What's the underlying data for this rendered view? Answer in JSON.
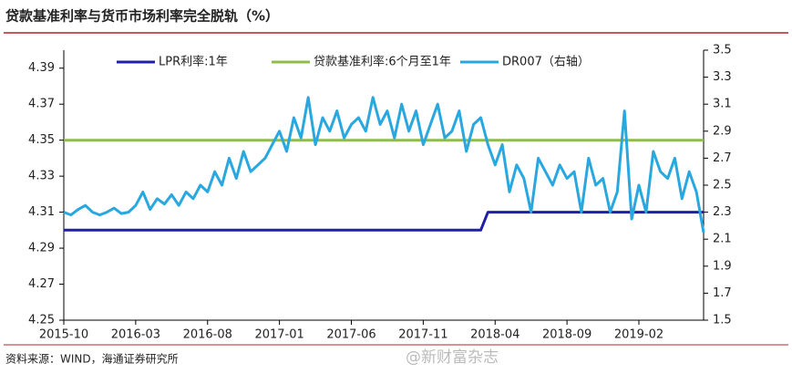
{
  "chart_data": {
    "type": "line",
    "title": "贷款基准利率与货币市场利率完全脱轨（%）",
    "source": "资料来源：WIND，海通证券研究所",
    "watermark": "@新财富杂志",
    "categories": [
      "2015-10",
      null,
      null,
      null,
      null,
      null,
      null,
      null,
      null,
      null,
      "2016-03",
      null,
      null,
      null,
      null,
      null,
      null,
      null,
      null,
      null,
      "2016-08",
      null,
      null,
      null,
      null,
      null,
      null,
      null,
      null,
      null,
      "2017-01",
      null,
      null,
      null,
      null,
      null,
      null,
      null,
      null,
      null,
      "2017-06",
      null,
      null,
      null,
      null,
      null,
      null,
      null,
      null,
      null,
      "2017-11",
      null,
      null,
      null,
      null,
      null,
      null,
      null,
      null,
      null,
      "2018-04",
      null,
      null,
      null,
      null,
      null,
      null,
      null,
      null,
      null,
      "2018-09",
      null,
      null,
      null,
      null,
      null,
      null,
      null,
      null,
      null,
      "2019-02",
      null,
      null,
      null,
      null,
      null,
      null,
      null,
      null,
      null
    ],
    "series": [
      {
        "name": "LPR利率:1年",
        "color": "#1f1fa8",
        "width": 3,
        "values": [
          4.3,
          4.3,
          4.3,
          4.3,
          4.3,
          4.3,
          4.3,
          4.3,
          4.3,
          4.3,
          4.3,
          4.3,
          4.3,
          4.3,
          4.3,
          4.3,
          4.3,
          4.3,
          4.3,
          4.3,
          4.3,
          4.3,
          4.3,
          4.3,
          4.3,
          4.3,
          4.3,
          4.3,
          4.3,
          4.3,
          4.3,
          4.3,
          4.3,
          4.3,
          4.3,
          4.3,
          4.3,
          4.3,
          4.3,
          4.3,
          4.3,
          4.3,
          4.3,
          4.3,
          4.3,
          4.3,
          4.3,
          4.3,
          4.3,
          4.3,
          4.3,
          4.3,
          4.3,
          4.3,
          4.3,
          4.3,
          4.3,
          4.3,
          4.3,
          4.31,
          4.31,
          4.31,
          4.31,
          4.31,
          4.31,
          4.31,
          4.31,
          4.31,
          4.31,
          4.31,
          4.31,
          4.31,
          4.31,
          4.31,
          4.31,
          4.31,
          4.31,
          4.31,
          4.31,
          4.31,
          4.31,
          4.31,
          4.31,
          4.31,
          4.31,
          4.31,
          4.31,
          4.31,
          4.31,
          4.31
        ]
      },
      {
        "name": "贷款基准利率:6个月至1年",
        "color": "#8fbc4a",
        "width": 3,
        "values": [
          4.35,
          4.35,
          4.35,
          4.35,
          4.35,
          4.35,
          4.35,
          4.35,
          4.35,
          4.35,
          4.35,
          4.35,
          4.35,
          4.35,
          4.35,
          4.35,
          4.35,
          4.35,
          4.35,
          4.35,
          4.35,
          4.35,
          4.35,
          4.35,
          4.35,
          4.35,
          4.35,
          4.35,
          4.35,
          4.35,
          4.35,
          4.35,
          4.35,
          4.35,
          4.35,
          4.35,
          4.35,
          4.35,
          4.35,
          4.35,
          4.35,
          4.35,
          4.35,
          4.35,
          4.35,
          4.35,
          4.35,
          4.35,
          4.35,
          4.35,
          4.35,
          4.35,
          4.35,
          4.35,
          4.35,
          4.35,
          4.35,
          4.35,
          4.35,
          4.35,
          4.35,
          4.35,
          4.35,
          4.35,
          4.35,
          4.35,
          4.35,
          4.35,
          4.35,
          4.35,
          4.35,
          4.35,
          4.35,
          4.35,
          4.35,
          4.35,
          4.35,
          4.35,
          4.35,
          4.35,
          4.35,
          4.35,
          4.35,
          4.35,
          4.35,
          4.35,
          4.35,
          4.35,
          4.35,
          4.35
        ]
      },
      {
        "name": "DR007（右轴）",
        "color": "#29a8e0",
        "width": 3,
        "axis": "y2",
        "values": [
          2.3,
          2.28,
          2.32,
          2.35,
          2.3,
          2.28,
          2.3,
          2.33,
          2.29,
          2.3,
          2.35,
          2.45,
          2.32,
          2.4,
          2.36,
          2.43,
          2.35,
          2.45,
          2.4,
          2.5,
          2.45,
          2.6,
          2.5,
          2.7,
          2.55,
          2.75,
          2.6,
          2.65,
          2.7,
          2.8,
          2.9,
          2.75,
          3.0,
          2.85,
          3.15,
          2.8,
          3.0,
          2.9,
          3.05,
          2.85,
          2.95,
          3.0,
          2.9,
          3.15,
          2.95,
          3.05,
          2.85,
          3.1,
          2.9,
          3.05,
          2.8,
          2.95,
          3.1,
          2.85,
          2.9,
          3.05,
          2.75,
          2.95,
          3.0,
          2.8,
          2.65,
          2.8,
          2.45,
          2.65,
          2.55,
          2.3,
          2.7,
          2.6,
          2.5,
          2.65,
          2.55,
          2.6,
          2.3,
          2.7,
          2.5,
          2.55,
          2.3,
          2.45,
          3.05,
          2.25,
          2.5,
          2.3,
          2.75,
          2.6,
          2.55,
          2.7,
          2.4,
          2.6,
          2.45,
          2.15
        ]
      }
    ],
    "ylim": [
      4.25,
      4.4
    ],
    "yticks": [
      4.25,
      4.27,
      4.29,
      4.31,
      4.33,
      4.35,
      4.37,
      4.39
    ],
    "y2lim": [
      1.5,
      3.5
    ],
    "y2ticks": [
      1.5,
      1.7,
      1.9,
      2.1,
      2.3,
      2.5,
      2.7,
      2.9,
      3.1,
      3.3,
      3.5
    ],
    "legend": "top"
  }
}
